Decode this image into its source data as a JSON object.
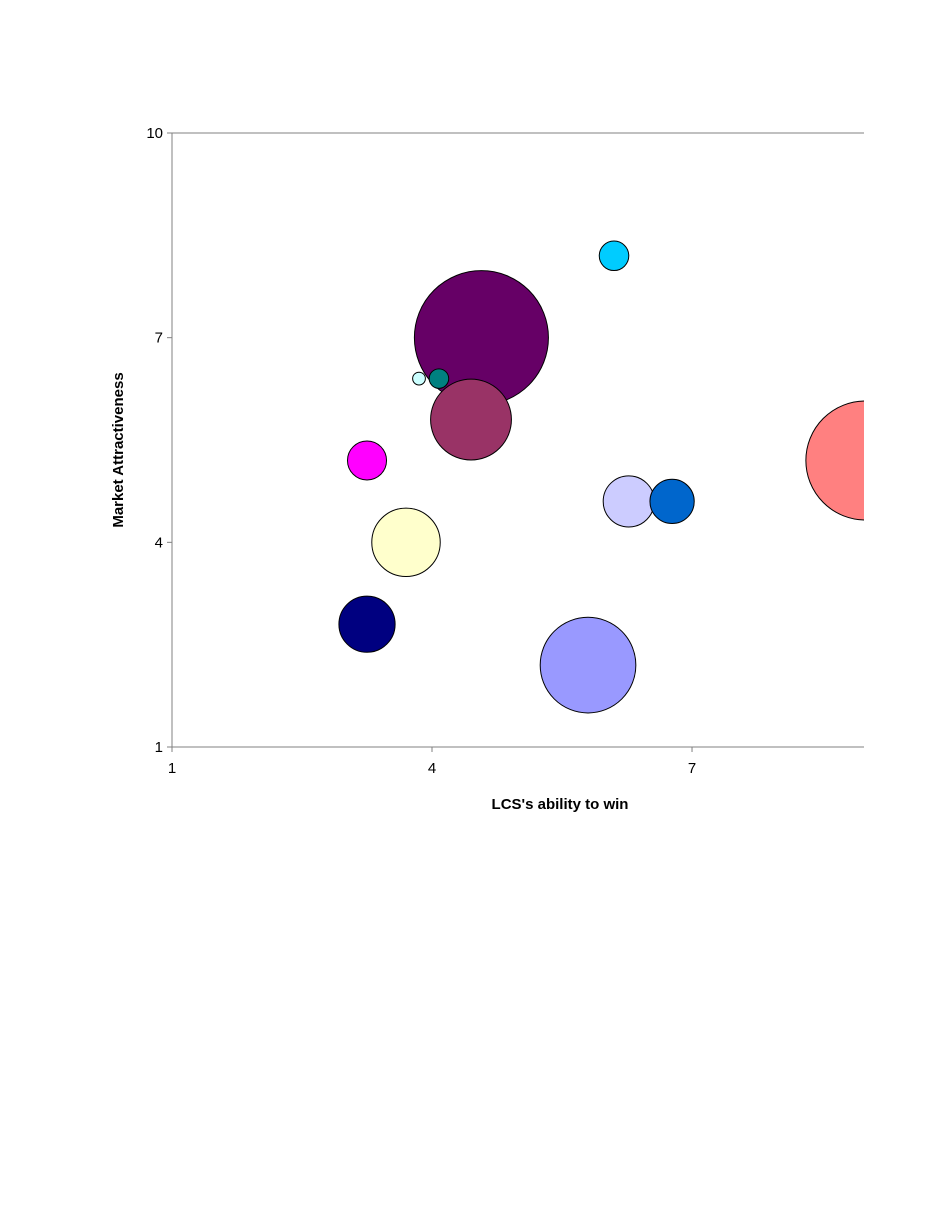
{
  "chart_data": {
    "type": "bubble",
    "title": "",
    "xlabel": "LCS's ability to win",
    "ylabel": "Market Attractiveness",
    "xlim": [
      1,
      9
    ],
    "ylim": [
      1,
      10
    ],
    "x_ticks": [
      "1",
      "4",
      "7"
    ],
    "y_ticks": [
      "1",
      "4",
      "7",
      "10"
    ],
    "grid": false,
    "legend": "none",
    "colors": {
      "axis": "#808080",
      "bubble_stroke": "#000000"
    },
    "points": [
      {
        "x": 4.57,
        "y": 7.0,
        "size": 16.5,
        "color": "#660066"
      },
      {
        "x": 4.45,
        "y": 5.8,
        "size": 6.0,
        "color": "#993366"
      },
      {
        "x": 3.85,
        "y": 6.4,
        "size": 0.15,
        "color": "#CCFFFF"
      },
      {
        "x": 4.08,
        "y": 6.4,
        "size": 0.35,
        "color": "#008080"
      },
      {
        "x": 3.25,
        "y": 5.2,
        "size": 1.4,
        "color": "#FF00FF"
      },
      {
        "x": 3.7,
        "y": 4.0,
        "size": 4.3,
        "color": "#FFFFCC"
      },
      {
        "x": 3.25,
        "y": 2.8,
        "size": 2.9,
        "color": "#000080"
      },
      {
        "x": 5.8,
        "y": 2.2,
        "size": 8.4,
        "color": "#9999FF"
      },
      {
        "x": 6.27,
        "y": 4.6,
        "size": 2.4,
        "color": "#CCCCFF"
      },
      {
        "x": 6.77,
        "y": 4.6,
        "size": 1.8,
        "color": "#0066CC"
      },
      {
        "x": 6.1,
        "y": 8.2,
        "size": 0.8,
        "color": "#00CCFF"
      },
      {
        "x": 9.0,
        "y": 5.2,
        "size": 13.0,
        "color": "#FF8080"
      }
    ]
  }
}
